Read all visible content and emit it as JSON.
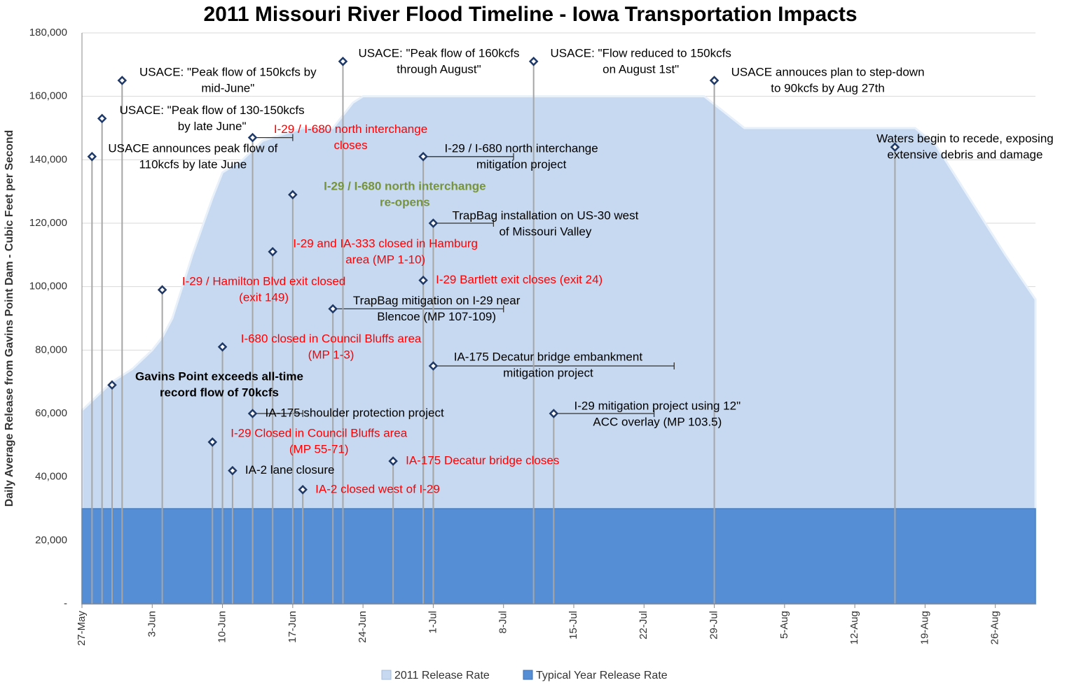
{
  "chart_data": {
    "type": "area",
    "title": "2011 Missouri River Flood Timeline - Iowa Transportation Impacts",
    "y_label": "Daily Average Release from Gavins Point Dam - Cubic Feet per Second",
    "xlim": [
      "2011-05-27",
      "2011-08-30"
    ],
    "xticks": [
      {
        "value": "2011-05-27",
        "label": "27-May"
      },
      {
        "value": "2011-06-03",
        "label": "3-Jun"
      },
      {
        "value": "2011-06-10",
        "label": "10-Jun"
      },
      {
        "value": "2011-06-17",
        "label": "17-Jun"
      },
      {
        "value": "2011-06-24",
        "label": "24-Jun"
      },
      {
        "value": "2011-07-01",
        "label": "1-Jul"
      },
      {
        "value": "2011-07-08",
        "label": "8-Jul"
      },
      {
        "value": "2011-07-15",
        "label": "15-Jul"
      },
      {
        "value": "2011-07-22",
        "label": "22-Jul"
      },
      {
        "value": "2011-07-29",
        "label": "29-Jul"
      },
      {
        "value": "2011-08-05",
        "label": "5-Aug"
      },
      {
        "value": "2011-08-12",
        "label": "12-Aug"
      },
      {
        "value": "2011-08-19",
        "label": "19-Aug"
      },
      {
        "value": "2011-08-26",
        "label": "26-Aug"
      }
    ],
    "ylim": [
      0,
      180000
    ],
    "yticks": [
      {
        "value": 0,
        "label": "-"
      },
      {
        "value": 20000,
        "label": "20,000"
      },
      {
        "value": 40000,
        "label": "40,000"
      },
      {
        "value": 60000,
        "label": "60,000"
      },
      {
        "value": 80000,
        "label": "80,000"
      },
      {
        "value": 100000,
        "label": "100,000"
      },
      {
        "value": 120000,
        "label": "120,000"
      },
      {
        "value": 140000,
        "label": "140,000"
      },
      {
        "value": 160000,
        "label": "160,000"
      },
      {
        "value": 180000,
        "label": "180,000"
      }
    ],
    "grid": true,
    "legend": "bottom",
    "series": [
      {
        "name": "2011 Release Rate",
        "color": "#c6d9f1",
        "x": [
          "2011-05-27",
          "2011-05-28",
          "2011-05-30",
          "2011-06-01",
          "2011-06-03",
          "2011-06-04",
          "2011-06-05",
          "2011-06-07",
          "2011-06-09",
          "2011-06-10",
          "2011-06-12",
          "2011-06-14",
          "2011-06-16",
          "2011-06-18",
          "2011-06-21",
          "2011-06-23",
          "2011-06-24",
          "2011-07-28",
          "2011-07-30",
          "2011-08-01",
          "2011-08-18",
          "2011-08-20",
          "2011-08-24",
          "2011-08-27",
          "2011-08-30"
        ],
        "values": [
          61000,
          64000,
          70000,
          74000,
          80000,
          84000,
          90000,
          110000,
          128000,
          136000,
          140000,
          146000,
          148000,
          150000,
          150000,
          158000,
          160000,
          160000,
          155000,
          150000,
          150000,
          145000,
          125000,
          110000,
          96000
        ]
      },
      {
        "name": "Typical Year Release Rate",
        "color": "#558ed5",
        "x": [
          "2011-05-27",
          "2011-08-30"
        ],
        "values": [
          30000,
          30000
        ]
      }
    ],
    "annotations": [
      {
        "x": "2011-05-28",
        "value": 141000,
        "lines": [
          "USACE announces peak flow of",
          "110kcfs by late June"
        ],
        "color": "#000000"
      },
      {
        "x": "2011-05-29",
        "value": 153000,
        "lines": [
          "USACE: \"Peak flow of 130-150kcfs",
          "by late June\""
        ],
        "color": "#000000"
      },
      {
        "x": "2011-05-30",
        "value": 69000,
        "lines": [
          "Gavins Point exceeds all-time",
          "record flow of 70kcfs"
        ],
        "color": "#000000",
        "bold": true
      },
      {
        "x": "2011-05-31",
        "value": 165000,
        "lines": [
          "USACE: \"Peak flow of 150kcfs by",
          "mid-June\""
        ],
        "color": "#000000"
      },
      {
        "x": "2011-06-04",
        "value": 99000,
        "lines": [
          "I-29 / Hamilton Blvd exit closed",
          "(exit 149)"
        ],
        "color": "#ff0000"
      },
      {
        "x": "2011-06-09",
        "value": 51000,
        "lines": [
          "I-29 Closed in Council Bluffs area",
          "(MP 55-71)"
        ],
        "color": "#ff0000"
      },
      {
        "x": "2011-06-10",
        "value": 81000,
        "lines": [
          "I-680 closed in Council Bluffs area",
          "(MP 1-3)"
        ],
        "color": "#ff0000"
      },
      {
        "x": "2011-06-11",
        "value": 42000,
        "lines": [
          "IA-2 lane closure"
        ],
        "color": "#000000"
      },
      {
        "x": "2011-06-13",
        "value": 147000,
        "lines": [
          "I-29 / I-680 north interchange",
          "closes"
        ],
        "color": "#ff0000",
        "end": "2011-06-17"
      },
      {
        "x": "2011-06-13",
        "value": 60000,
        "lines": [
          "IA-175 shoulder protection project"
        ],
        "color": "#000000",
        "end": "2011-06-18"
      },
      {
        "x": "2011-06-15",
        "value": 111000,
        "lines": [
          "I-29 and IA-333 closed in Hamburg",
          "area (MP 1-10)"
        ],
        "color": "#ff0000"
      },
      {
        "x": "2011-06-17",
        "value": 129000,
        "lines": [
          "I-29 / I-680 north interchange",
          "re-opens"
        ],
        "color": "#77933c",
        "bold": true
      },
      {
        "x": "2011-06-18",
        "value": 36000,
        "lines": [
          "IA-2 closed west of I-29"
        ],
        "color": "#ff0000"
      },
      {
        "x": "2011-06-21",
        "value": 93000,
        "lines": [
          "TrapBag mitigation on I-29 near",
          "Blencoe (MP 107-109)"
        ],
        "color": "#000000",
        "end": "2011-07-08"
      },
      {
        "x": "2011-06-22",
        "value": 171000,
        "lines": [
          "USACE: \"Peak flow of 160kcfs",
          "through August\""
        ],
        "color": "#000000"
      },
      {
        "x": "2011-06-27",
        "value": 45000,
        "lines": [
          "IA-175 Decatur bridge closes"
        ],
        "color": "#ff0000"
      },
      {
        "x": "2011-06-30",
        "value": 141000,
        "lines": [
          "I-29 / I-680 north interchange",
          "mitigation project"
        ],
        "color": "#000000",
        "end": "2011-07-09"
      },
      {
        "x": "2011-06-30",
        "value": 102000,
        "lines": [
          "I-29 Bartlett exit closes (exit 24)"
        ],
        "color": "#ff0000"
      },
      {
        "x": "2011-07-01",
        "value": 120000,
        "lines": [
          "TrapBag installation on US-30 west",
          "of Missouri Valley"
        ],
        "color": "#000000",
        "end": "2011-07-07"
      },
      {
        "x": "2011-07-01",
        "value": 75000,
        "lines": [
          "IA-175 Decatur bridge embankment",
          "mitigation project"
        ],
        "color": "#000000",
        "end": "2011-07-25"
      },
      {
        "x": "2011-07-11",
        "value": 171000,
        "lines": [
          "USACE: \"Flow reduced to 150kcfs",
          "on August 1st\""
        ],
        "color": "#000000"
      },
      {
        "x": "2011-07-13",
        "value": 60000,
        "lines": [
          "I-29 mitigation project using 12\"",
          "ACC overlay (MP 103.5)"
        ],
        "color": "#000000",
        "end": "2011-07-23"
      },
      {
        "x": "2011-07-29",
        "value": 165000,
        "lines": [
          "USACE annouces plan to step-down",
          "to 90kcfs by Aug 27th"
        ],
        "color": "#000000"
      },
      {
        "x": "2011-08-16",
        "value": 144000,
        "lines": [
          "Waters begin to recede, exposing",
          "extensive debris and damage"
        ],
        "color": "#000000"
      }
    ]
  }
}
